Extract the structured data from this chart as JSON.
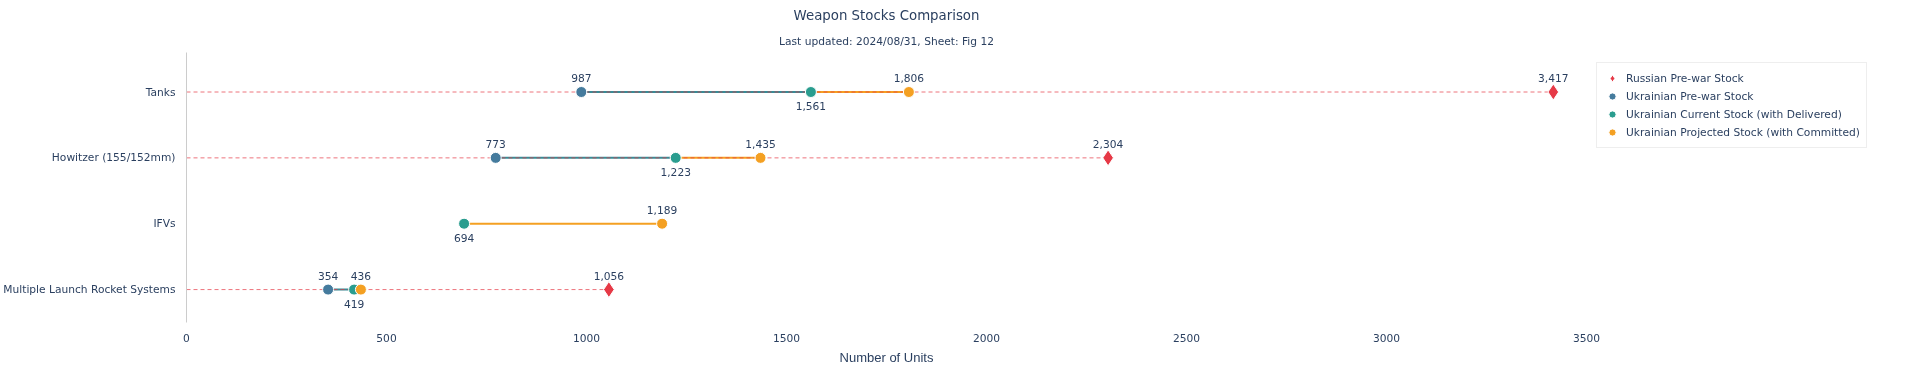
{
  "chart_data": {
    "type": "scatter",
    "orientation": "horizontal",
    "title": "Weapon Stocks Comparison",
    "subtitle": "Last updated: 2024/08/31, Sheet: Fig 12",
    "xlabel": "Number of Units",
    "categories": [
      "Tanks",
      "Howitzer (155/152mm)",
      "IFVs",
      "Multiple Launch Rocket Systems"
    ],
    "series": [
      {
        "name": "Russian Pre-war Stock",
        "type": "lollipop",
        "marker": "diamond",
        "line_style": "dashed",
        "color": "#e63946",
        "values": [
          3417,
          2304,
          null,
          1056
        ],
        "value_labels": [
          "3,417",
          "2,304",
          null,
          "1,056"
        ]
      },
      {
        "name": "Ukrainian Pre-war Stock",
        "marker": "circle",
        "color": "#457b9d",
        "values": [
          987,
          773,
          null,
          354
        ],
        "value_labels": [
          "987",
          "773",
          null,
          "354"
        ]
      },
      {
        "name": "Ukrainian Current Stock (with Delivered)",
        "marker": "circle",
        "color": "#2a9d8f",
        "values": [
          1561,
          1223,
          694,
          419
        ],
        "value_labels": [
          "1,561",
          "1,223",
          "694",
          "419"
        ]
      },
      {
        "name": "Ukrainian Projected Stock (with Committed)",
        "marker": "circle",
        "color": "#f4a022",
        "values": [
          1806,
          1435,
          1189,
          436
        ],
        "value_labels": [
          "1,806",
          "1,435",
          "1,189",
          "436"
        ]
      }
    ],
    "xlim": [
      0,
      3500
    ],
    "xticks": [
      0,
      500,
      1000,
      1500,
      2000,
      2500,
      3000,
      3500
    ],
    "grid": false,
    "legend": "top right"
  }
}
